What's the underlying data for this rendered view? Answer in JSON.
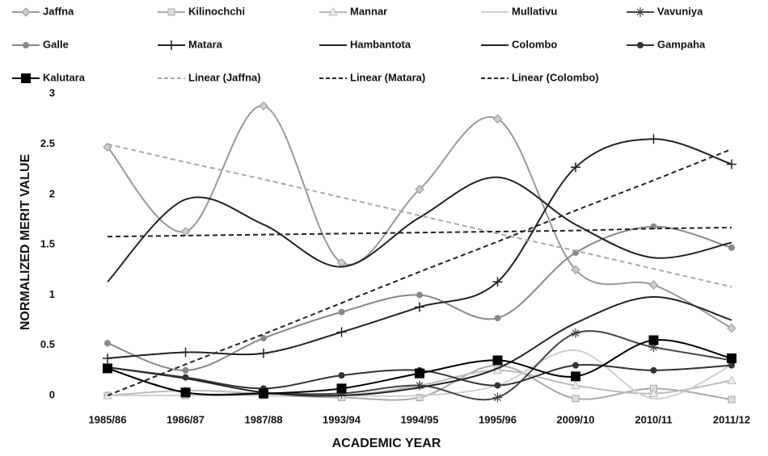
{
  "chart_data": {
    "type": "line",
    "x_label": "ACADEMIC YEAR",
    "y_label": "NORMALIZED MERIT VALUE",
    "categories": [
      "1985/86",
      "1986/87",
      "1987/88",
      "1993/94",
      "1994/95",
      "1995/96",
      "2009/10",
      "2010/11",
      "2011/12"
    ],
    "ylim": [
      -0.12,
      3.05
    ],
    "yticks": [
      0,
      0.5,
      1,
      1.5,
      2,
      2.5,
      3
    ],
    "grid": false,
    "legend": "top",
    "series": [
      {
        "name": "Jaffna",
        "color": "#999999",
        "marker": "diamond",
        "values": [
          2.47,
          1.63,
          2.88,
          1.32,
          2.05,
          2.75,
          1.25,
          1.1,
          0.67
        ]
      },
      {
        "name": "Kilinochchi",
        "color": "#aaaaaa",
        "marker": "square",
        "values": [
          0,
          0,
          0,
          -0.02,
          -0.02,
          0.3,
          -0.03,
          0.07,
          -0.04
        ]
      },
      {
        "name": "Mannar",
        "color": "#bbbbbb",
        "marker": "triangle",
        "values": [
          0,
          0.05,
          0.02,
          0,
          0.1,
          0.25,
          0.1,
          0.02,
          0.15
        ]
      },
      {
        "name": "Mullativu",
        "color": "#d0d0d0",
        "marker": "none",
        "values": [
          0,
          0,
          0,
          0,
          0,
          0.1,
          0.45,
          -0.03,
          0.3
        ]
      },
      {
        "name": "Vavuniya",
        "color": "#444444",
        "marker": "star",
        "values": [
          0.27,
          0.03,
          0.02,
          0.02,
          0.1,
          -0.02,
          0.62,
          0.48,
          0.35
        ]
      },
      {
        "name": "Galle",
        "color": "#888888",
        "marker": "circle",
        "values": [
          0.52,
          0.25,
          0.57,
          0.83,
          1.0,
          0.77,
          1.42,
          1.68,
          1.47
        ]
      },
      {
        "name": "Matara",
        "color": "#222222",
        "marker": "plus",
        "values": [
          0.37,
          0.43,
          0.42,
          0.63,
          0.88,
          1.13,
          2.27,
          2.55,
          2.3
        ]
      },
      {
        "name": "Hambantota",
        "color": "#222222",
        "marker": "none",
        "values": [
          0.28,
          0.17,
          0.03,
          0,
          0.08,
          0.27,
          0.72,
          0.98,
          0.75
        ]
      },
      {
        "name": "Colombo",
        "color": "#222222",
        "marker": "none",
        "values": [
          1.13,
          1.95,
          1.7,
          1.28,
          1.77,
          2.17,
          1.7,
          1.37,
          1.52
        ]
      },
      {
        "name": "Gampaha",
        "color": "#333333",
        "marker": "circle",
        "values": [
          0.28,
          0.18,
          0.07,
          0.2,
          0.25,
          0.1,
          0.3,
          0.25,
          0.3
        ]
      },
      {
        "name": "Kalutara",
        "color": "#000000",
        "marker": "bigsquare",
        "values": [
          0.27,
          0.03,
          0.02,
          0.07,
          0.22,
          0.35,
          0.19,
          0.55,
          0.37
        ]
      },
      {
        "name": "Linear (Jaffna)",
        "color": "#aaaaaa",
        "marker": "none",
        "trend": true,
        "values": [
          2.5,
          2.32,
          2.15,
          1.97,
          1.79,
          1.61,
          1.44,
          1.26,
          1.08
        ]
      },
      {
        "name": "Linear (Matara)",
        "color": "#222222",
        "marker": "none",
        "trend": true,
        "values": [
          0,
          0.31,
          0.61,
          0.92,
          1.23,
          1.53,
          1.84,
          2.14,
          2.45
        ]
      },
      {
        "name": "Linear (Colombo)",
        "color": "#222222",
        "marker": "none",
        "trend": true,
        "values": [
          1.58,
          1.59,
          1.6,
          1.61,
          1.62,
          1.63,
          1.64,
          1.66,
          1.67
        ]
      }
    ]
  }
}
